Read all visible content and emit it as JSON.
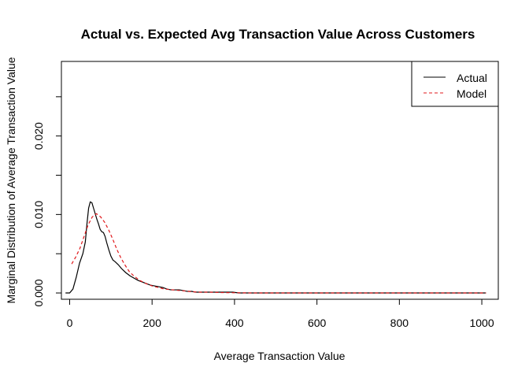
{
  "chart_data": {
    "type": "line",
    "title": "Actual vs. Expected Avg Transaction Value Across Customers",
    "xlabel": "Average Transaction Value",
    "ylabel": "Marginal Distribution of Average Transaction Value",
    "xlim": [
      -20,
      1040
    ],
    "ylim": [
      -0.0008,
      0.0295
    ],
    "x_ticks": [
      0,
      200,
      400,
      600,
      800,
      1000
    ],
    "x_tick_labels": [
      "0",
      "200",
      "400",
      "600",
      "800",
      "1000"
    ],
    "y_ticks": [
      0.0,
      0.005,
      0.01,
      0.015,
      0.02,
      0.025
    ],
    "y_tick_labels": [
      "0.000",
      "",
      "0.010",
      "",
      "0.020",
      ""
    ],
    "grid": false,
    "legend": {
      "position": "top-right",
      "entries": [
        "Actual",
        "Model"
      ]
    },
    "series": [
      {
        "name": "Actual",
        "color": "#000000",
        "dash": "solid",
        "points": [
          [
            -10,
            0.0
          ],
          [
            0,
            0.0
          ],
          [
            8,
            0.0005
          ],
          [
            16,
            0.002
          ],
          [
            24,
            0.0038
          ],
          [
            32,
            0.005
          ],
          [
            38,
            0.0065
          ],
          [
            42,
            0.0088
          ],
          [
            46,
            0.0108
          ],
          [
            50,
            0.0116
          ],
          [
            54,
            0.0115
          ],
          [
            58,
            0.0108
          ],
          [
            62,
            0.0101
          ],
          [
            66,
            0.0094
          ],
          [
            70,
            0.0088
          ],
          [
            74,
            0.0081
          ],
          [
            78,
            0.0078
          ],
          [
            82,
            0.0077
          ],
          [
            86,
            0.0072
          ],
          [
            90,
            0.0064
          ],
          [
            95,
            0.0055
          ],
          [
            100,
            0.0047
          ],
          [
            105,
            0.0042
          ],
          [
            110,
            0.004
          ],
          [
            118,
            0.0036
          ],
          [
            126,
            0.0031
          ],
          [
            136,
            0.0026
          ],
          [
            146,
            0.0022
          ],
          [
            156,
            0.0019
          ],
          [
            166,
            0.0016
          ],
          [
            176,
            0.0014
          ],
          [
            186,
            0.0012
          ],
          [
            196,
            0.001
          ],
          [
            206,
            0.0009
          ],
          [
            216,
            0.0008
          ],
          [
            226,
            0.0007
          ],
          [
            236,
            0.0005
          ],
          [
            246,
            0.0004
          ],
          [
            256,
            0.0004
          ],
          [
            266,
            0.0004
          ],
          [
            276,
            0.0003
          ],
          [
            286,
            0.0002
          ],
          [
            296,
            0.0002
          ],
          [
            306,
            0.0001
          ],
          [
            316,
            0.0001
          ],
          [
            336,
            0.0001
          ],
          [
            356,
            0.0001
          ],
          [
            376,
            0.0001
          ],
          [
            396,
            0.0001
          ],
          [
            410,
            0.0
          ],
          [
            500,
            0.0
          ],
          [
            600,
            0.0
          ],
          [
            700,
            0.0
          ],
          [
            800,
            0.0
          ],
          [
            900,
            0.0
          ],
          [
            1010,
            0.0
          ]
        ]
      },
      {
        "name": "Model",
        "color": "#e0191c",
        "dash": "dashed",
        "points": [
          [
            5,
            0.0037
          ],
          [
            15,
            0.0046
          ],
          [
            25,
            0.0057
          ],
          [
            35,
            0.0072
          ],
          [
            45,
            0.0087
          ],
          [
            55,
            0.0097
          ],
          [
            65,
            0.0101
          ],
          [
            75,
            0.0097
          ],
          [
            85,
            0.009
          ],
          [
            95,
            0.008
          ],
          [
            105,
            0.0068
          ],
          [
            115,
            0.0055
          ],
          [
            125,
            0.0044
          ],
          [
            135,
            0.0035
          ],
          [
            145,
            0.0027
          ],
          [
            155,
            0.0022
          ],
          [
            170,
            0.0016
          ],
          [
            185,
            0.0012
          ],
          [
            200,
            0.0009
          ],
          [
            215,
            0.0007
          ],
          [
            230,
            0.0005
          ],
          [
            250,
            0.0004
          ],
          [
            270,
            0.0003
          ],
          [
            290,
            0.0002
          ],
          [
            310,
            0.0001
          ],
          [
            340,
            0.0001
          ],
          [
            370,
            5e-05
          ],
          [
            400,
            3e-05
          ],
          [
            450,
            0.0
          ],
          [
            500,
            0.0
          ],
          [
            600,
            0.0
          ],
          [
            700,
            0.0
          ],
          [
            800,
            0.0
          ],
          [
            900,
            0.0
          ],
          [
            1010,
            0.0
          ]
        ]
      }
    ]
  }
}
